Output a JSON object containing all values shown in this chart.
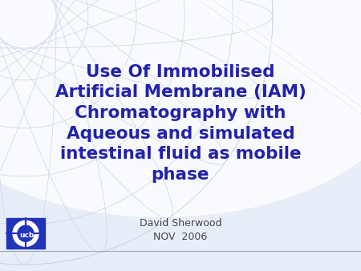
{
  "title_lines": [
    "Use Of Immobilised",
    "Artificial Membrane (IAM)",
    "Chromatography with",
    "Aqueous and simulated",
    "intestinal fluid as mobile",
    "phase"
  ],
  "author": "David Sherwood",
  "date": "NOV  2006",
  "title_color": "#2222AA",
  "author_color": "#444444",
  "bg_color": "#E8EEF8",
  "globe_color": "#C8D4E4",
  "title_fontsize": 15.5,
  "author_fontsize": 9,
  "logo_blue": "#2233BB",
  "bottom_line_color": "#99AABB",
  "fig_w": 4.5,
  "fig_h": 3.38,
  "dpi": 100
}
